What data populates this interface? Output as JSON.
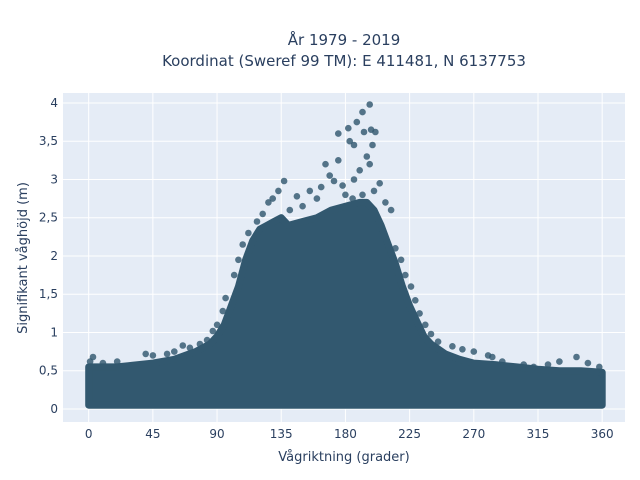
{
  "chart_data": {
    "type": "scatter",
    "title": [
      "År 1979 - 2019",
      "Koordinat (Sweref 99 TM): E 411481, N 6137753"
    ],
    "xlabel": "Vågriktning (grader)",
    "ylabel": "Signifikant våghöjd (m)",
    "xlim": [
      -18,
      376
    ],
    "ylim": [
      -0.17,
      4.13
    ],
    "xticks": [
      0,
      45,
      90,
      135,
      180,
      225,
      270,
      315,
      360
    ],
    "xtick_labels": [
      "0",
      "45",
      "90",
      "135",
      "180",
      "225",
      "270",
      "315",
      "360"
    ],
    "yticks": [
      0,
      0.5,
      1,
      1.5,
      2,
      2.5,
      3,
      3.5,
      4
    ],
    "ytick_labels": [
      "0",
      "0,5",
      "1",
      "1,5",
      "2",
      "2,5",
      "3",
      "3,5",
      "4"
    ],
    "grid": true,
    "marker_color": "#32586f",
    "plot_background": "#e5ecf6",
    "envelope": {
      "x": [
        0,
        10,
        20,
        30,
        45,
        60,
        75,
        85,
        90,
        95,
        100,
        105,
        110,
        115,
        120,
        125,
        130,
        135,
        140,
        150,
        160,
        170,
        180,
        190,
        195,
        200,
        205,
        210,
        215,
        220,
        225,
        230,
        235,
        240,
        250,
        260,
        270,
        285,
        300,
        315,
        330,
        345,
        360
      ],
      "max": [
        0.55,
        0.55,
        0.55,
        0.57,
        0.6,
        0.65,
        0.75,
        0.85,
        0.95,
        1.1,
        1.35,
        1.6,
        1.95,
        2.2,
        2.35,
        2.4,
        2.45,
        2.5,
        2.4,
        2.45,
        2.5,
        2.6,
        2.65,
        2.7,
        2.7,
        2.6,
        2.4,
        2.15,
        1.9,
        1.6,
        1.35,
        1.15,
        0.95,
        0.85,
        0.72,
        0.65,
        0.6,
        0.58,
        0.55,
        0.52,
        0.5,
        0.5,
        0.48
      ],
      "min": [
        0.05,
        0.05,
        0.05,
        0.05,
        0.05,
        0.05,
        0.05,
        0.05,
        0.05,
        0.05,
        0.05,
        0.05,
        0.05,
        0.05,
        0.05,
        0.05,
        0.05,
        0.05,
        0.05,
        0.05,
        0.05,
        0.05,
        0.05,
        0.05,
        0.05,
        0.05,
        0.05,
        0.05,
        0.05,
        0.05,
        0.05,
        0.05,
        0.05,
        0.05,
        0.05,
        0.05,
        0.05,
        0.05,
        0.05,
        0.05,
        0.05,
        0.05,
        0.05
      ]
    },
    "points": [
      {
        "x": 197,
        "y": 3.98
      },
      {
        "x": 192,
        "y": 3.88
      },
      {
        "x": 188,
        "y": 3.75
      },
      {
        "x": 198,
        "y": 3.65
      },
      {
        "x": 193,
        "y": 3.62
      },
      {
        "x": 182,
        "y": 3.67
      },
      {
        "x": 175,
        "y": 3.6
      },
      {
        "x": 201,
        "y": 3.62
      },
      {
        "x": 183,
        "y": 3.5
      },
      {
        "x": 186,
        "y": 3.45
      },
      {
        "x": 199,
        "y": 3.45
      },
      {
        "x": 195,
        "y": 3.3
      },
      {
        "x": 197,
        "y": 3.2
      },
      {
        "x": 190,
        "y": 3.12
      },
      {
        "x": 175,
        "y": 3.25
      },
      {
        "x": 166,
        "y": 3.2
      },
      {
        "x": 169,
        "y": 3.05
      },
      {
        "x": 172,
        "y": 2.98
      },
      {
        "x": 178,
        "y": 2.92
      },
      {
        "x": 186,
        "y": 3.0
      },
      {
        "x": 204,
        "y": 2.95
      },
      {
        "x": 200,
        "y": 2.85
      },
      {
        "x": 192,
        "y": 2.8
      },
      {
        "x": 163,
        "y": 2.9
      },
      {
        "x": 155,
        "y": 2.85
      },
      {
        "x": 146,
        "y": 2.78
      },
      {
        "x": 137,
        "y": 2.98
      },
      {
        "x": 133,
        "y": 2.85
      },
      {
        "x": 129,
        "y": 2.75
      },
      {
        "x": 126,
        "y": 2.7
      },
      {
        "x": 141,
        "y": 2.6
      },
      {
        "x": 150,
        "y": 2.65
      },
      {
        "x": 160,
        "y": 2.75
      },
      {
        "x": 208,
        "y": 2.7
      },
      {
        "x": 212,
        "y": 2.6
      },
      {
        "x": 180,
        "y": 2.8
      },
      {
        "x": 185,
        "y": 2.75
      },
      {
        "x": 122,
        "y": 2.55
      },
      {
        "x": 118,
        "y": 2.45
      },
      {
        "x": 112,
        "y": 2.3
      },
      {
        "x": 108,
        "y": 2.15
      },
      {
        "x": 105,
        "y": 1.95
      },
      {
        "x": 102,
        "y": 1.75
      },
      {
        "x": 96,
        "y": 1.45
      },
      {
        "x": 94,
        "y": 1.28
      },
      {
        "x": 90,
        "y": 1.1
      },
      {
        "x": 87,
        "y": 1.02
      },
      {
        "x": 83,
        "y": 0.9
      },
      {
        "x": 78,
        "y": 0.85
      },
      {
        "x": 71,
        "y": 0.8
      },
      {
        "x": 66,
        "y": 0.83
      },
      {
        "x": 60,
        "y": 0.75
      },
      {
        "x": 55,
        "y": 0.72
      },
      {
        "x": 45,
        "y": 0.7
      },
      {
        "x": 40,
        "y": 0.72
      },
      {
        "x": 20,
        "y": 0.62
      },
      {
        "x": 3,
        "y": 0.68
      },
      {
        "x": 1,
        "y": 0.62
      },
      {
        "x": 10,
        "y": 0.6
      },
      {
        "x": 215,
        "y": 2.1
      },
      {
        "x": 219,
        "y": 1.95
      },
      {
        "x": 222,
        "y": 1.75
      },
      {
        "x": 226,
        "y": 1.6
      },
      {
        "x": 229,
        "y": 1.42
      },
      {
        "x": 232,
        "y": 1.25
      },
      {
        "x": 236,
        "y": 1.1
      },
      {
        "x": 240,
        "y": 0.98
      },
      {
        "x": 245,
        "y": 0.88
      },
      {
        "x": 255,
        "y": 0.82
      },
      {
        "x": 262,
        "y": 0.78
      },
      {
        "x": 270,
        "y": 0.75
      },
      {
        "x": 280,
        "y": 0.7
      },
      {
        "x": 283,
        "y": 0.68
      },
      {
        "x": 290,
        "y": 0.62
      },
      {
        "x": 305,
        "y": 0.58
      },
      {
        "x": 312,
        "y": 0.55
      },
      {
        "x": 322,
        "y": 0.58
      },
      {
        "x": 330,
        "y": 0.62
      },
      {
        "x": 342,
        "y": 0.68
      },
      {
        "x": 350,
        "y": 0.6
      },
      {
        "x": 358,
        "y": 0.55
      },
      {
        "x": 360,
        "y": 0.45
      }
    ]
  }
}
